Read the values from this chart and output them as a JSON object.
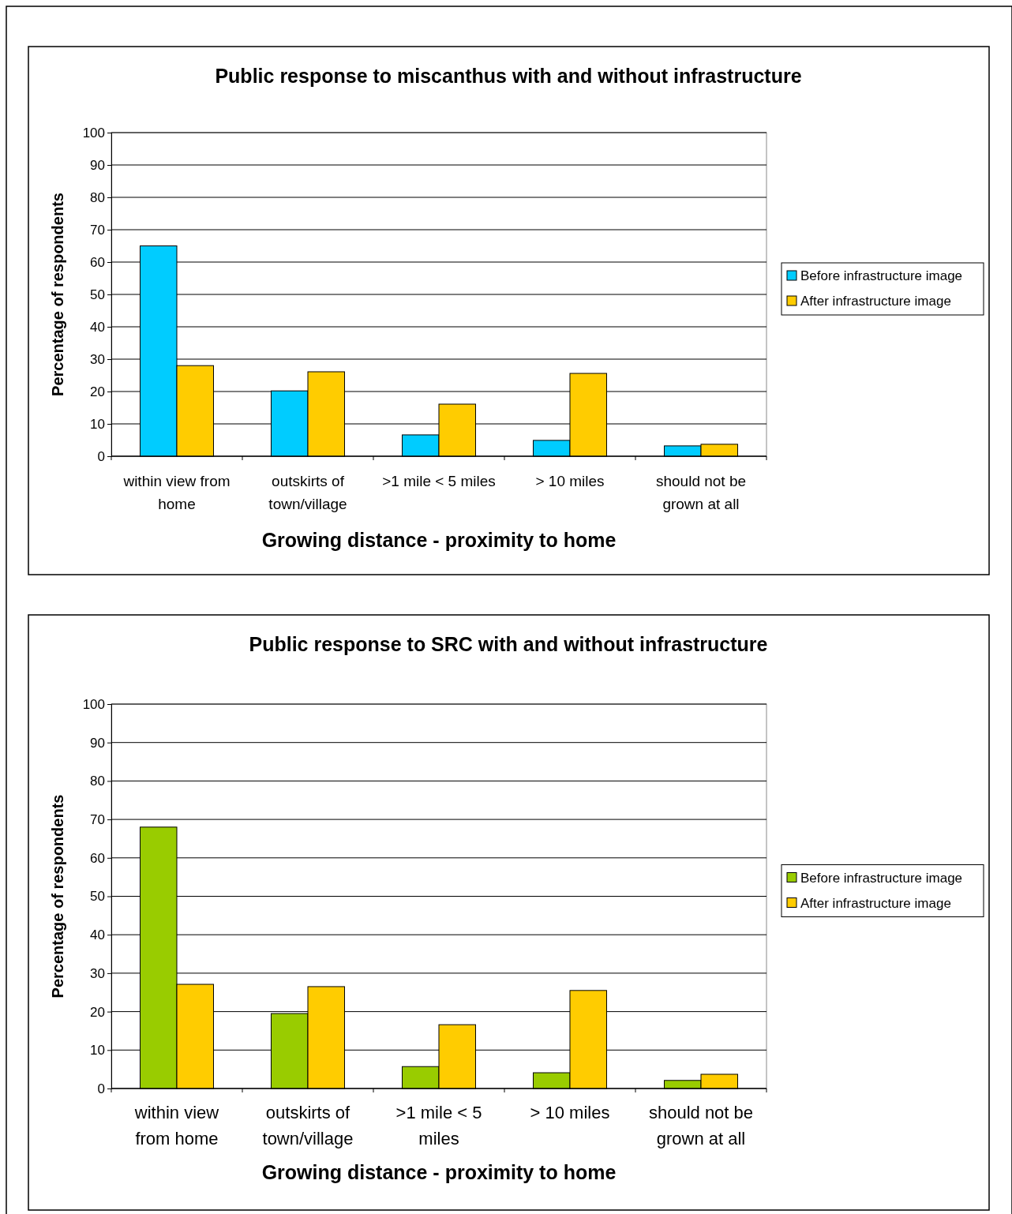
{
  "chart_data": [
    {
      "type": "bar",
      "title": "Public response to miscanthus with and without infrastructure",
      "xlabel": "Growing distance - proximity to home",
      "ylabel": "Percentage of respondents",
      "categories": [
        "within view from home",
        "outskirts of town/village",
        ">1 mile < 5 miles",
        "> 10 miles",
        "should not be grown at all"
      ],
      "series": [
        {
          "name": "Before infrastructure image",
          "color": "#00ccff",
          "values": [
            65,
            20.2,
            6.6,
            4.9,
            3.2
          ]
        },
        {
          "name": "After infrastructure image",
          "color": "#ffcc00",
          "values": [
            28,
            26.1,
            16.1,
            25.6,
            3.7
          ]
        }
      ],
      "ylim": [
        0,
        100
      ],
      "yticks": [
        0,
        10,
        20,
        30,
        40,
        50,
        60,
        70,
        80,
        90,
        100
      ],
      "grid": "y",
      "legend": "right"
    },
    {
      "type": "bar",
      "title": "Public response to SRC with and without infrastructure",
      "xlabel": "Growing distance - proximity to home",
      "ylabel": "Percentage of respondents",
      "categories": [
        "within view from home",
        "outskirts of town/village",
        ">1 mile < 5 miles",
        "> 10 miles",
        "should not be grown at all"
      ],
      "series": [
        {
          "name": "Before infrastructure image",
          "color": "#99cc00",
          "values": [
            68,
            19.5,
            5.7,
            4.1,
            2.1
          ]
        },
        {
          "name": "After infrastructure image",
          "color": "#ffcc00",
          "values": [
            27.1,
            26.5,
            16.6,
            25.5,
            3.7
          ]
        }
      ],
      "ylim": [
        0,
        100
      ],
      "yticks": [
        0,
        10,
        20,
        30,
        40,
        50,
        60,
        70,
        80,
        90,
        100
      ],
      "grid": "y",
      "legend": "right"
    }
  ]
}
